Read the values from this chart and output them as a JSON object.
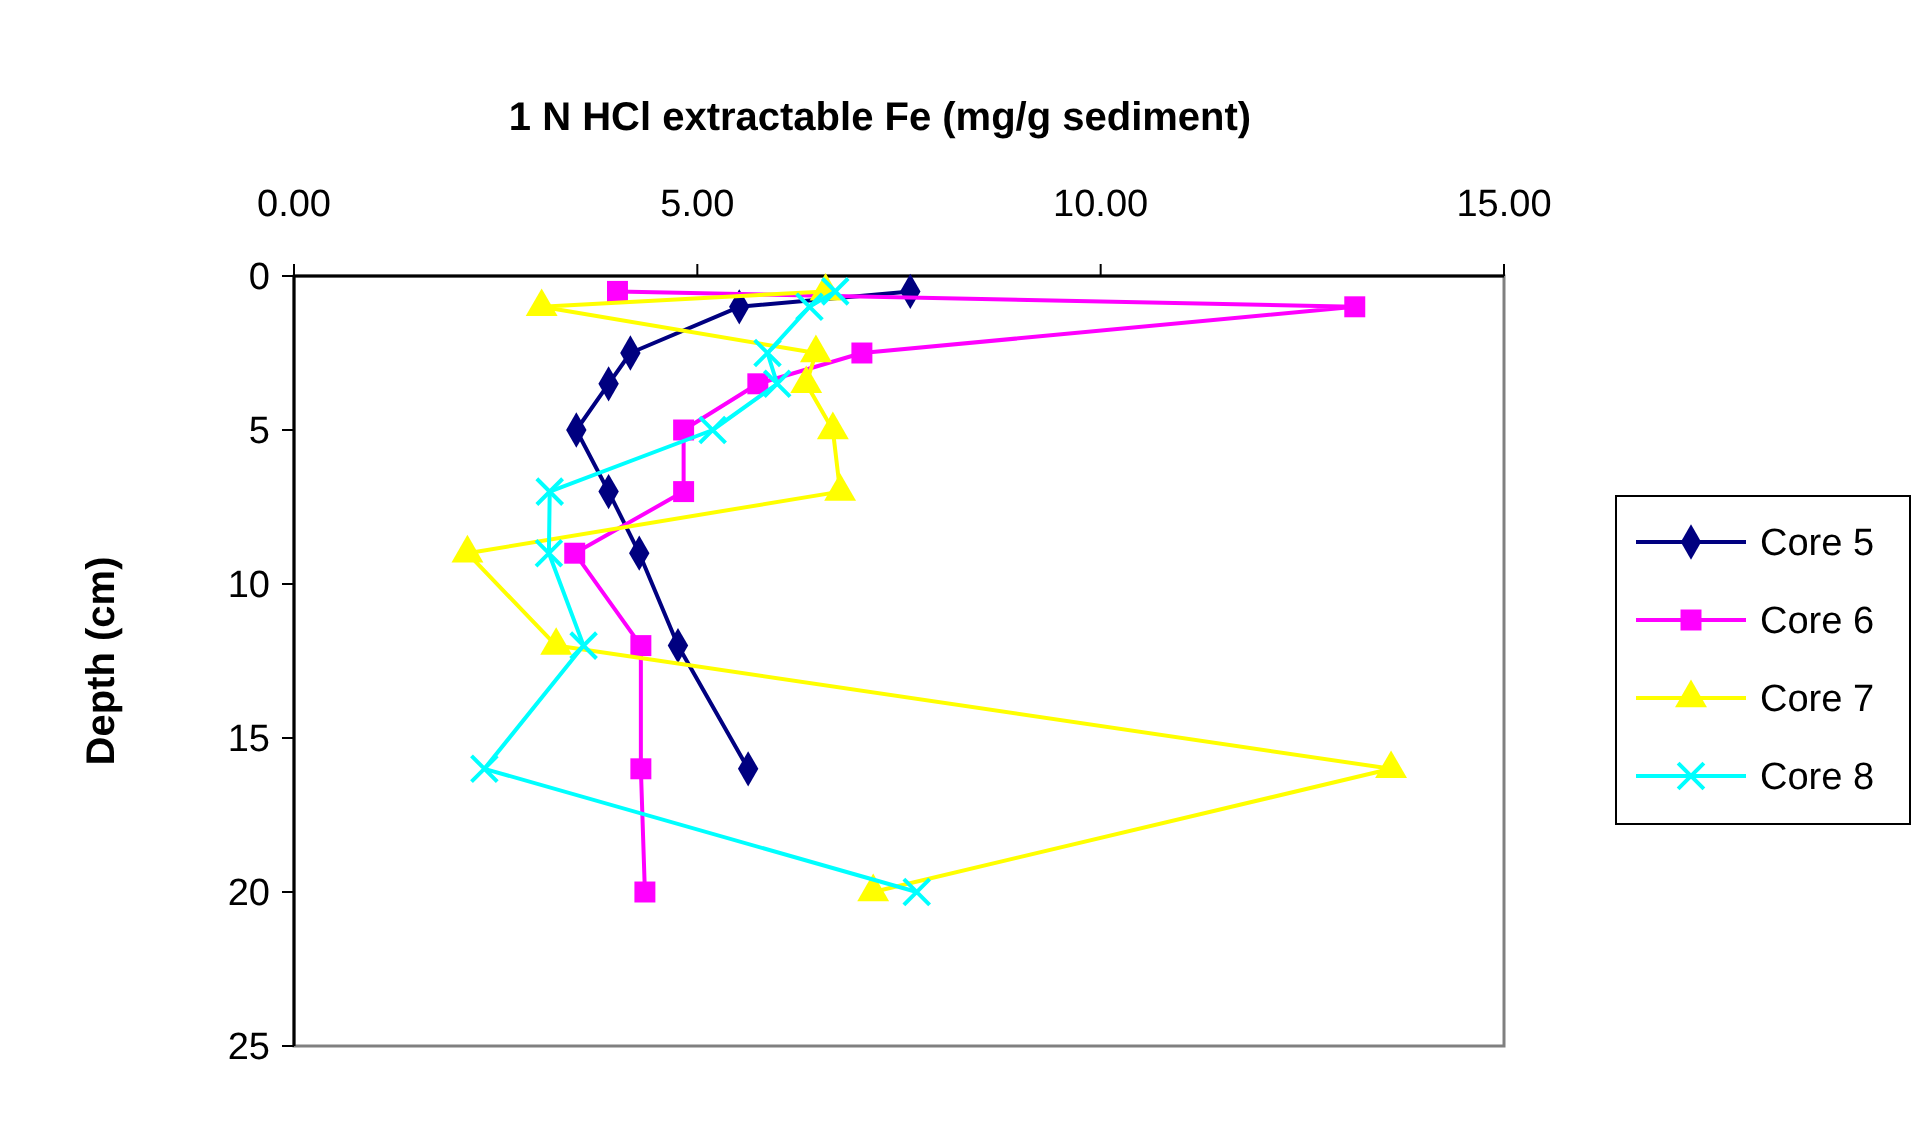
{
  "chart_data": {
    "type": "line",
    "title": "1 N HCl extractable Fe (mg/g sediment)",
    "ylabel": "Depth (cm)",
    "xlim": [
      0,
      15
    ],
    "xticks": [
      {
        "value": 0,
        "label": "0.00"
      },
      {
        "value": 5,
        "label": "5.00"
      },
      {
        "value": 10,
        "label": "10.00"
      },
      {
        "value": 15,
        "label": "15.00"
      }
    ],
    "ylim": [
      25,
      0
    ],
    "yticks": [
      0,
      5,
      10,
      15,
      20,
      25
    ],
    "grid": false,
    "legend": "right",
    "line_style": "solid",
    "series": [
      {
        "name": "Core 5",
        "color": "#000080",
        "marker": "diamond",
        "x": [
          7.64,
          5.52,
          4.17,
          3.9,
          3.5,
          3.9,
          4.28,
          4.76,
          5.63
        ],
        "values": [
          0.5,
          1,
          2.5,
          3.5,
          5,
          7,
          9,
          12,
          16
        ]
      },
      {
        "name": "Core 6",
        "color": "#ff00ff",
        "marker": "square",
        "x": [
          4.01,
          13.15,
          7.04,
          5.75,
          4.83,
          4.83,
          3.48,
          4.3,
          4.3,
          4.35
        ],
        "values": [
          0.5,
          1,
          2.5,
          3.5,
          5,
          7,
          9,
          12,
          16,
          20
        ]
      },
      {
        "name": "Core 7",
        "color": "#ffff00",
        "marker": "triangle",
        "x": [
          6.59,
          3.07,
          6.47,
          6.35,
          6.68,
          6.77,
          2.15,
          3.25,
          13.6,
          7.18
        ],
        "values": [
          0.5,
          1,
          2.5,
          3.5,
          5,
          7,
          9,
          12,
          16,
          20
        ]
      },
      {
        "name": "Core 8",
        "color": "#00ffff",
        "marker": "cross",
        "x": [
          6.71,
          6.39,
          5.87,
          5.99,
          5.19,
          3.17,
          3.16,
          3.59,
          2.36,
          7.72
        ],
        "values": [
          0.5,
          1,
          2.5,
          3.5,
          5,
          7,
          9,
          12,
          16,
          20
        ]
      }
    ]
  }
}
